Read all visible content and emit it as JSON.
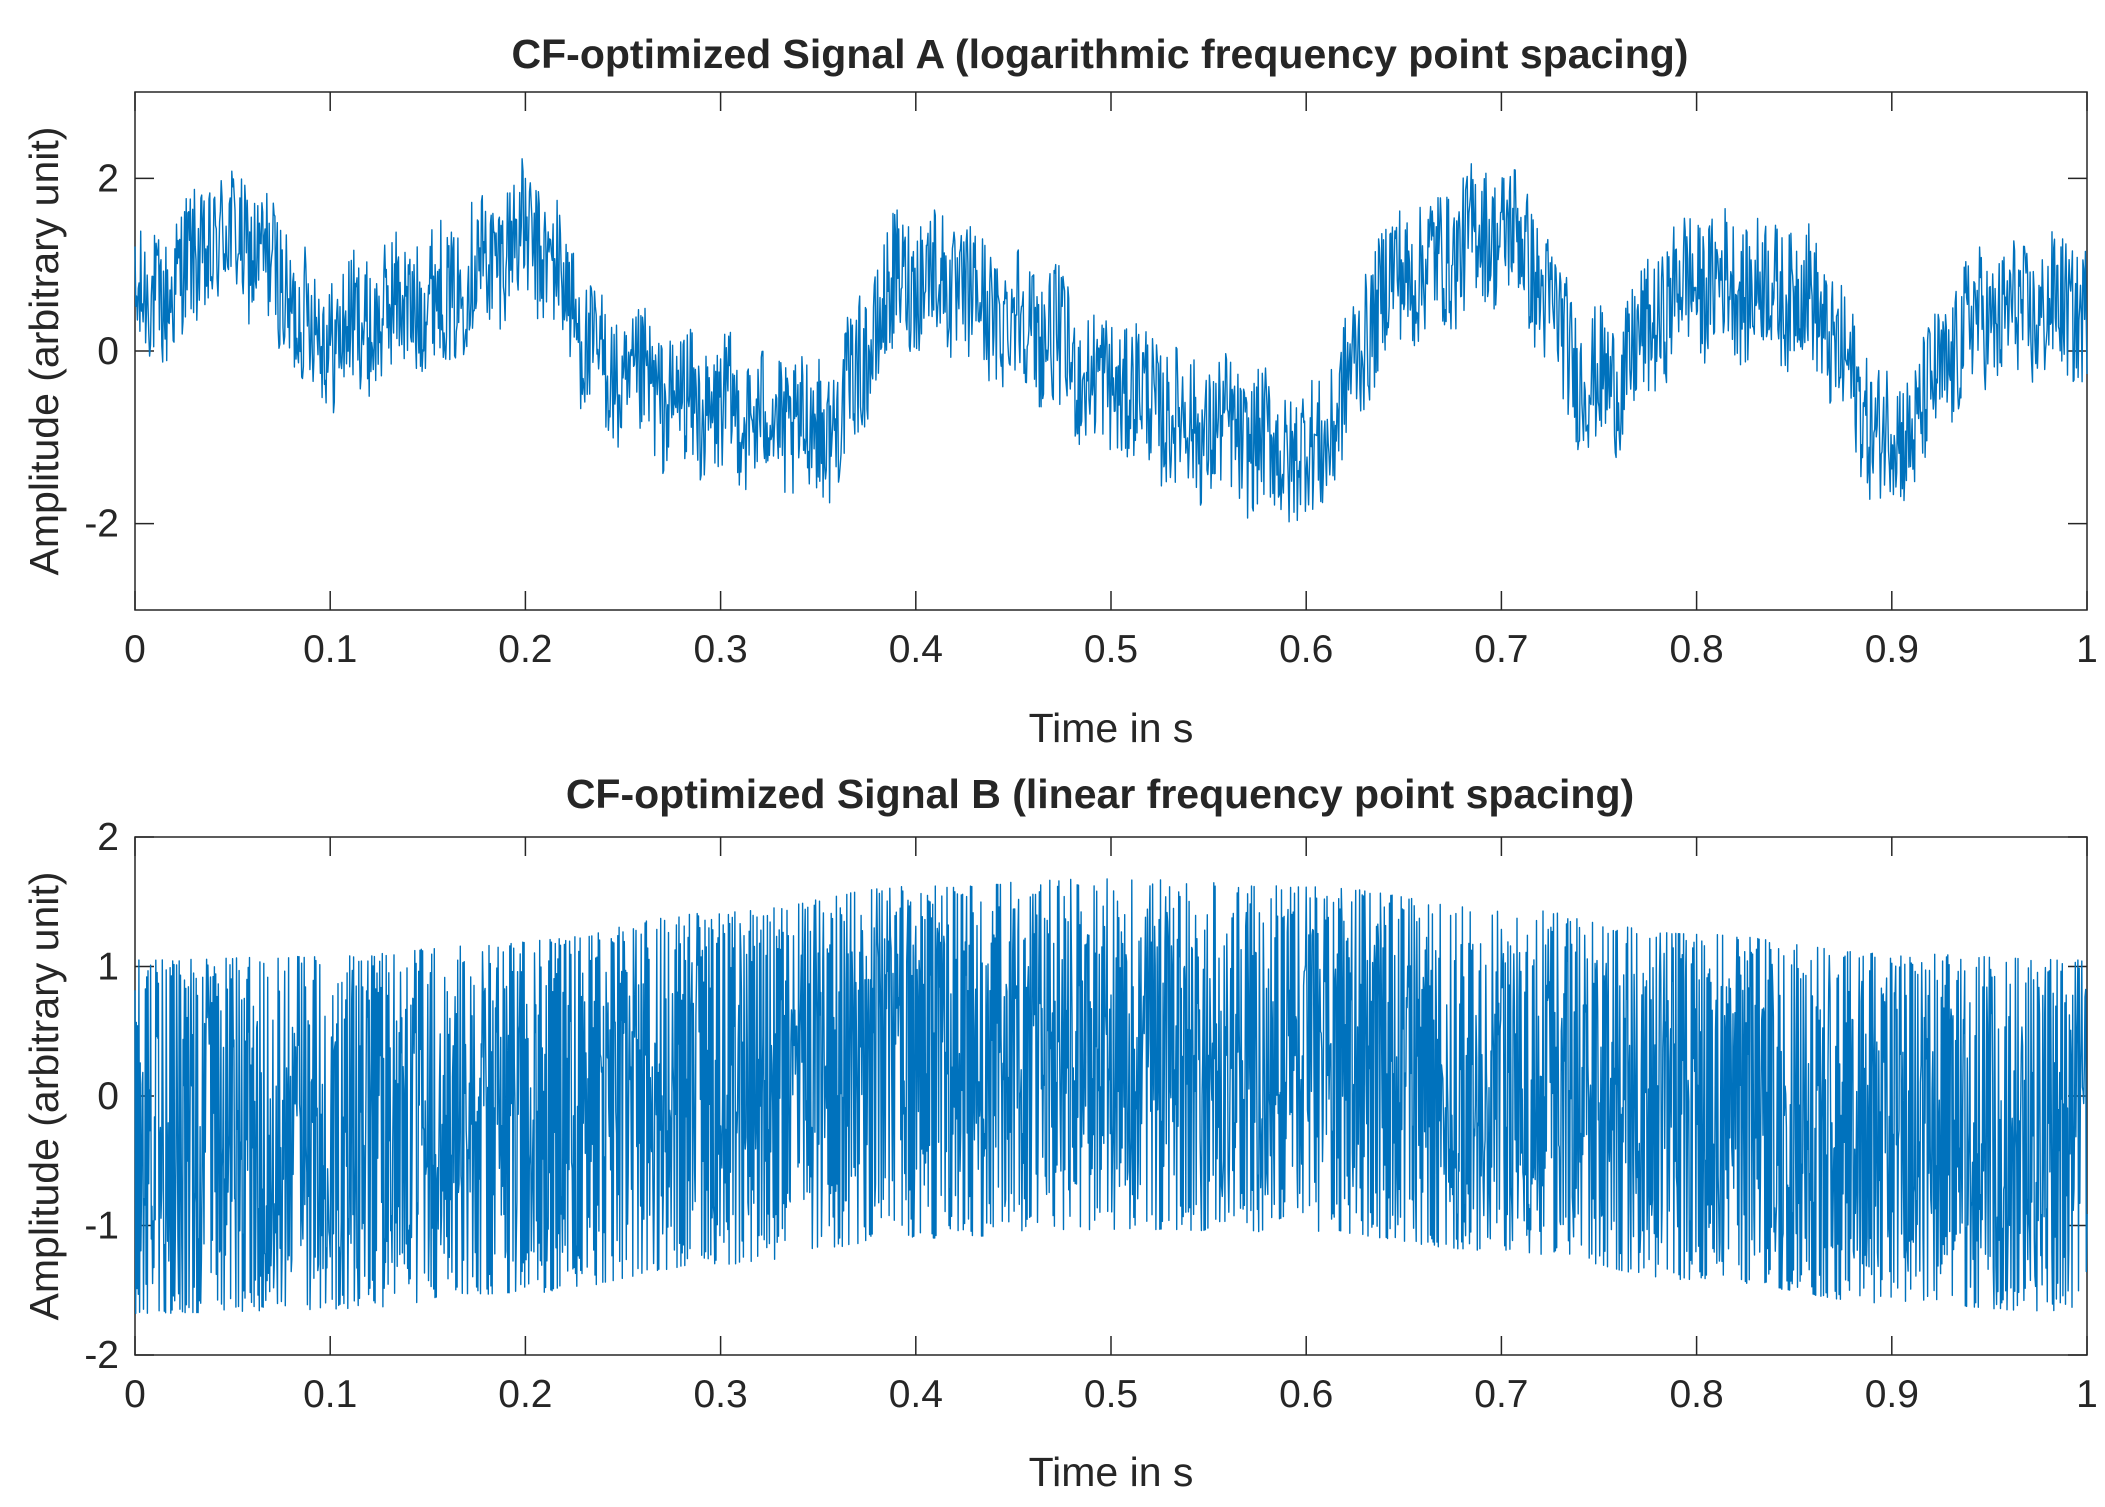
{
  "chart_data": [
    {
      "type": "line",
      "title": "CF-optimized Signal A (logarithmic frequency point spacing)",
      "xlabel": "Time in s",
      "ylabel": "Amplitude (arbitrary unit)",
      "xlim": [
        0,
        1
      ],
      "ylim": [
        -3,
        3
      ],
      "xticks": [
        0,
        0.1,
        0.2,
        0.3,
        0.4,
        0.5,
        0.6,
        0.7,
        0.8,
        0.9,
        1
      ],
      "xtick_labels": [
        "0",
        "0.1",
        "0.2",
        "0.3",
        "0.4",
        "0.5",
        "0.6",
        "0.7",
        "0.8",
        "0.9",
        "1"
      ],
      "yticks": [
        -2,
        0,
        2
      ],
      "ytick_labels": [
        "-2",
        "0",
        "2"
      ],
      "grid": false,
      "series": [
        {
          "name": "Signal A",
          "color": "#0072BD",
          "x": [
            0,
            0.05,
            0.1,
            0.15,
            0.2,
            0.25,
            0.3,
            0.35,
            0.4,
            0.45,
            0.5,
            0.55,
            0.6,
            0.65,
            0.7,
            0.75,
            0.8,
            0.85,
            0.9,
            0.95,
            1
          ],
          "y": [
            0.5,
            1.3,
            0.2,
            0.6,
            1.3,
            -0.4,
            -0.7,
            -0.9,
            0.9,
            0.4,
            -0.4,
            -0.9,
            -1.2,
            0.9,
            1.4,
            -0.4,
            0.8,
            0.7,
            -1.0,
            0.4,
            0.5
          ]
        }
      ]
    },
    {
      "type": "line",
      "title": "CF-optimized Signal B (linear frequency point spacing)",
      "xlabel": "Time in s",
      "ylabel": "Amplitude (arbitrary unit)",
      "xlim": [
        0,
        1
      ],
      "ylim": [
        -2,
        2
      ],
      "xticks": [
        0,
        0.1,
        0.2,
        0.3,
        0.4,
        0.5,
        0.6,
        0.7,
        0.8,
        0.9,
        1
      ],
      "xtick_labels": [
        "0",
        "0.1",
        "0.2",
        "0.3",
        "0.4",
        "0.5",
        "0.6",
        "0.7",
        "0.8",
        "0.9",
        "1"
      ],
      "yticks": [
        -2,
        -1,
        0,
        1,
        2
      ],
      "ytick_labels": [
        "-2",
        "-1",
        "0",
        "1",
        "2"
      ],
      "grid": false,
      "series": [
        {
          "name": "Signal B",
          "color": "#0072BD",
          "x": [
            0,
            0.1,
            0.2,
            0.3,
            0.4,
            0.5,
            0.6,
            0.7,
            0.8,
            0.9,
            1
          ],
          "upper_envelope": [
            1.05,
            1.08,
            1.2,
            1.42,
            1.62,
            1.68,
            1.62,
            1.45,
            1.25,
            1.1,
            1.05
          ],
          "lower_envelope": [
            -1.68,
            -1.65,
            -1.52,
            -1.3,
            -1.1,
            -1.03,
            -1.05,
            -1.2,
            -1.42,
            -1.6,
            -1.68
          ]
        }
      ]
    }
  ]
}
